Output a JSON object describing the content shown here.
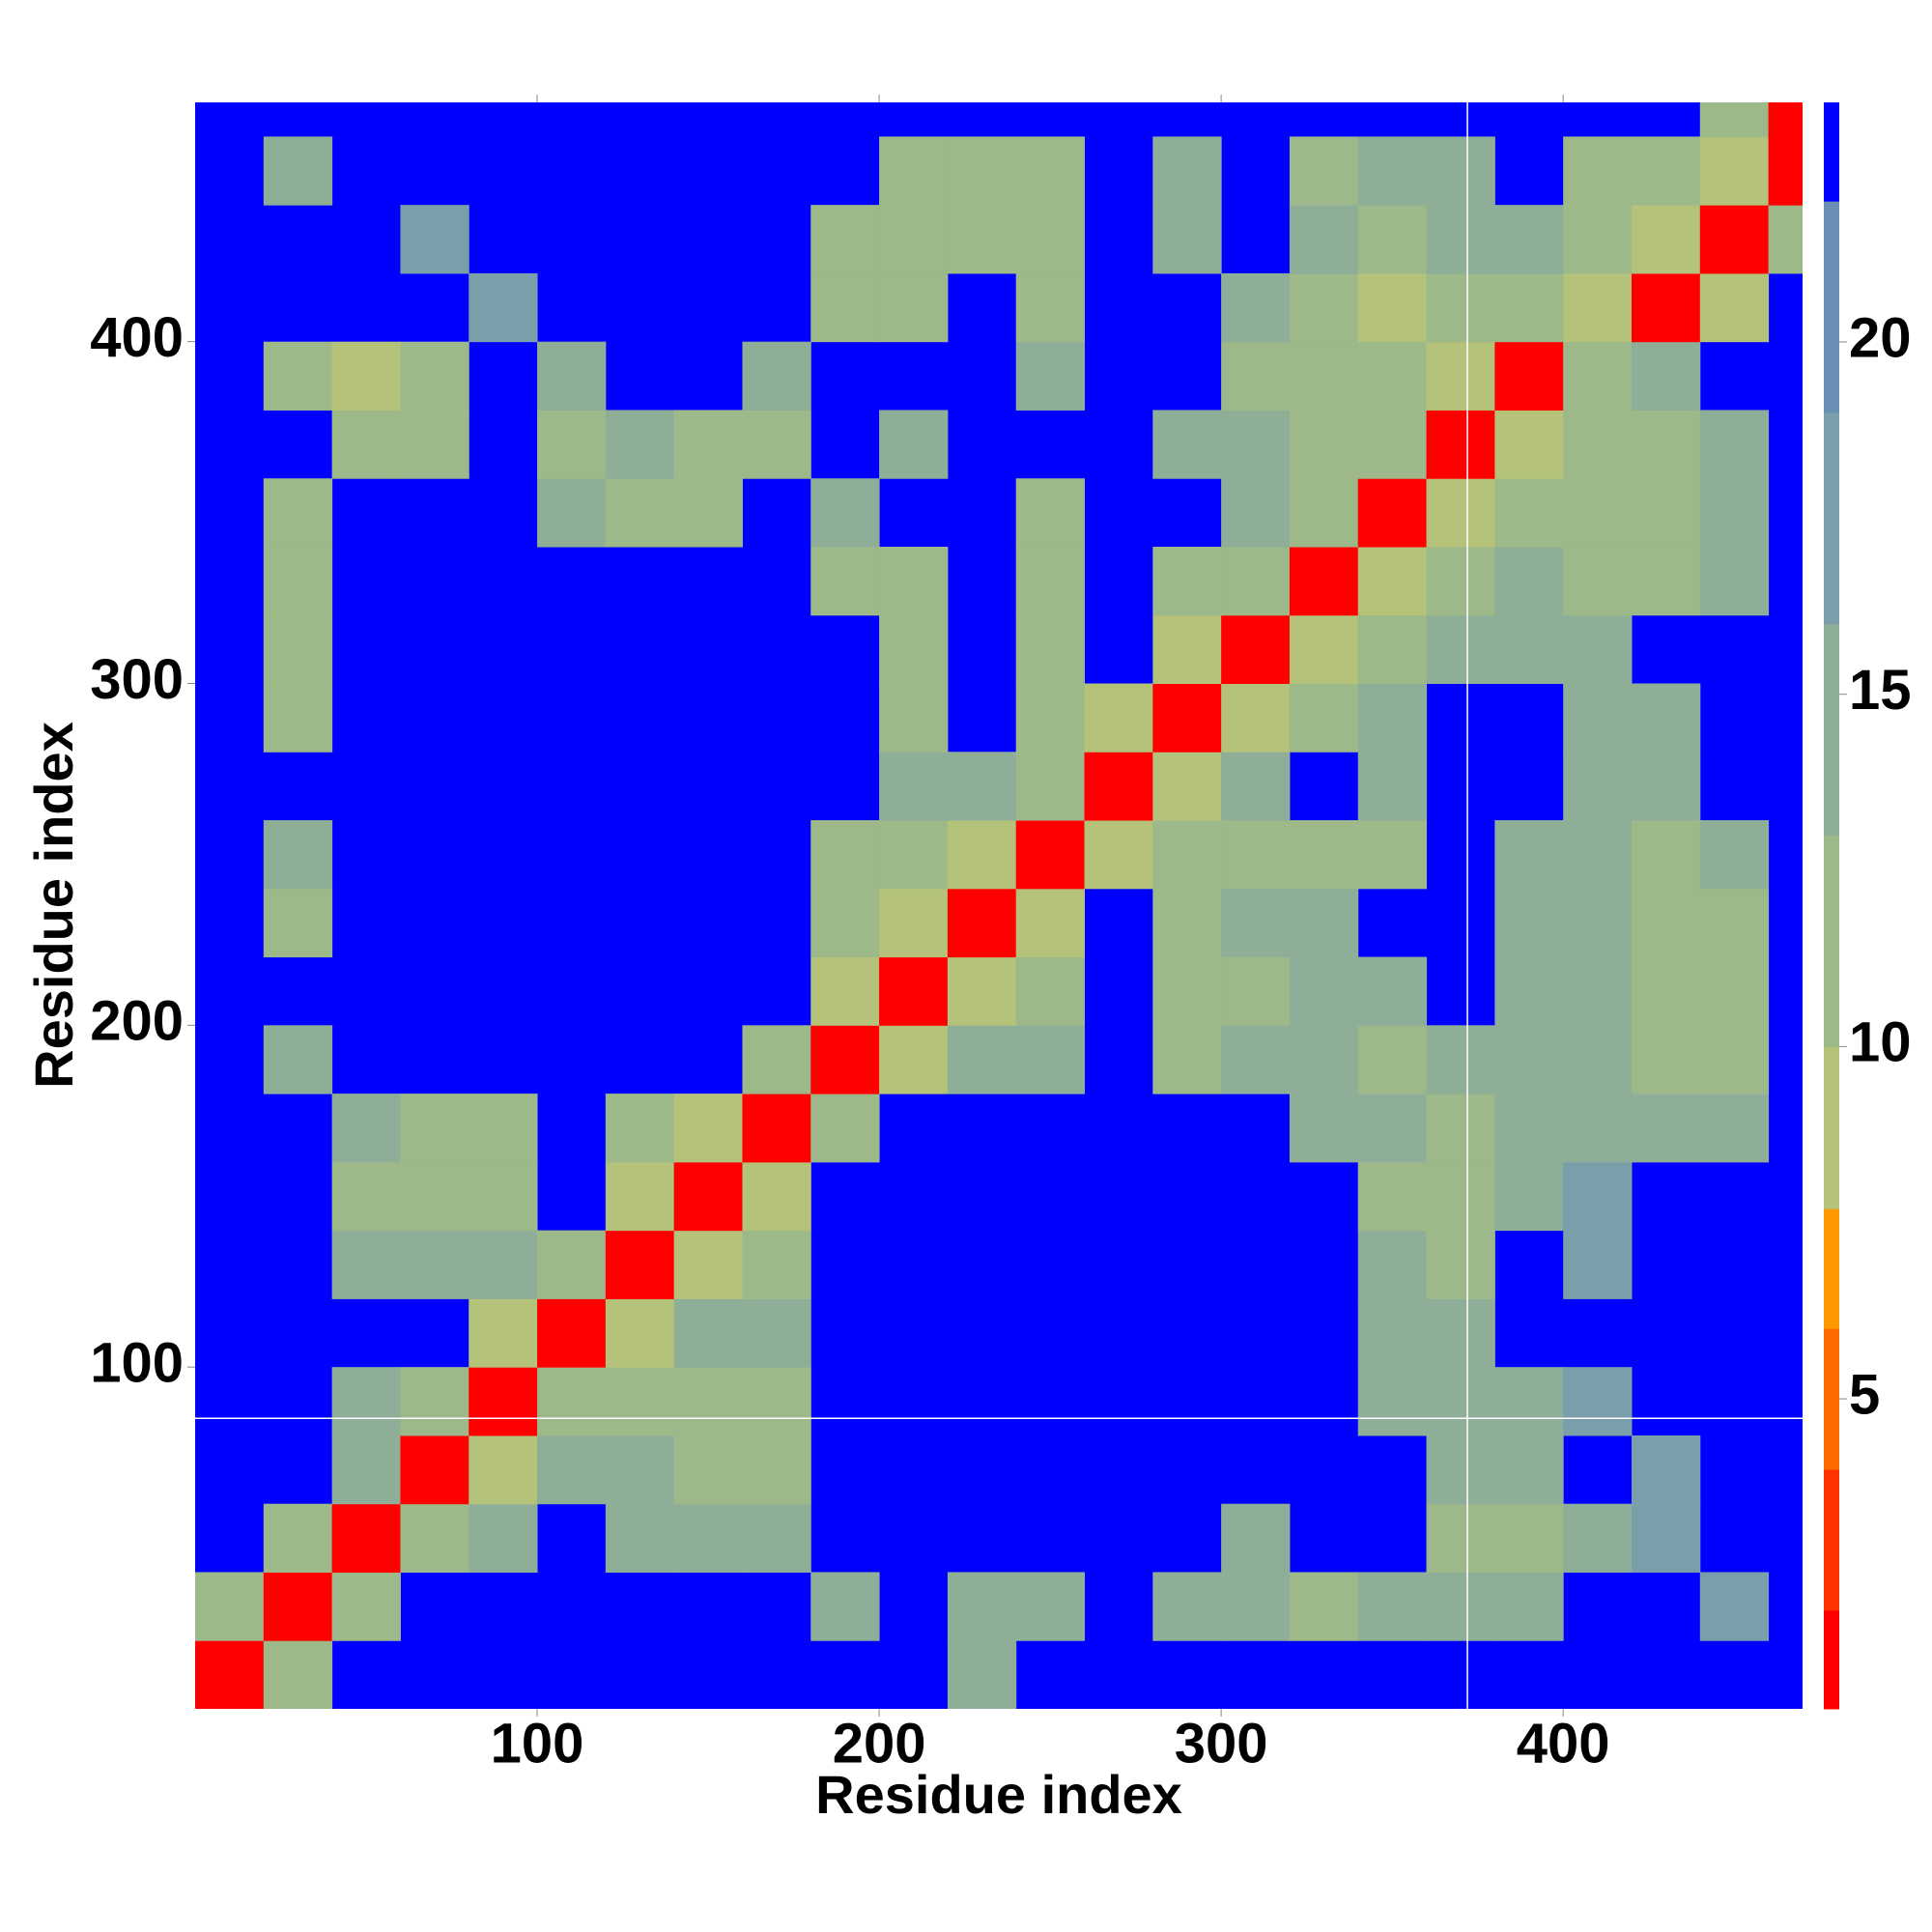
{
  "chart_data": {
    "type": "heatmap",
    "x_label": "Residue index",
    "y_label": "Residue index",
    "xlim": [
      0,
      470
    ],
    "ylim": [
      0,
      470
    ],
    "xticks": [
      100,
      200,
      300,
      400
    ],
    "yticks": [
      100,
      200,
      300,
      400
    ],
    "x_edges": [
      0,
      20,
      40,
      60,
      80,
      100,
      120,
      140,
      160,
      180,
      200,
      220,
      240,
      260,
      280,
      300,
      320,
      340,
      360,
      380,
      400,
      420,
      440,
      460,
      480
    ],
    "y_edges": [
      0,
      20,
      40,
      60,
      80,
      100,
      120,
      140,
      160,
      180,
      200,
      220,
      240,
      260,
      280,
      300,
      320,
      340,
      360,
      380,
      400,
      420,
      440,
      460,
      480
    ],
    "background_value": 23,
    "z": [
      [
        2,
        12,
        23,
        23,
        23,
        23,
        23,
        23,
        23,
        23,
        23,
        16,
        23,
        23,
        23,
        23,
        23,
        23,
        23,
        23,
        23,
        23,
        23,
        23
      ],
      [
        12,
        2,
        12,
        23,
        23,
        23,
        23,
        23,
        23,
        15,
        23,
        14,
        14,
        23,
        16,
        15,
        13,
        16,
        15,
        14,
        23,
        23,
        17,
        23
      ],
      [
        23,
        12,
        2,
        12,
        15,
        23,
        14,
        14,
        14,
        23,
        23,
        23,
        23,
        23,
        23,
        16,
        23,
        23,
        13,
        12,
        16,
        17,
        23,
        23
      ],
      [
        23,
        23,
        14,
        2,
        10,
        14,
        14,
        12,
        12,
        23,
        23,
        23,
        23,
        23,
        23,
        23,
        23,
        23,
        14,
        14,
        23,
        17,
        23,
        23
      ],
      [
        23,
        23,
        14,
        12,
        2,
        12,
        12,
        13,
        12,
        23,
        23,
        23,
        23,
        23,
        23,
        23,
        23,
        16,
        15,
        16,
        17,
        23,
        23,
        23
      ],
      [
        23,
        23,
        23,
        23,
        10,
        2,
        10,
        14,
        14,
        23,
        23,
        23,
        23,
        23,
        23,
        23,
        23,
        16,
        15,
        23,
        23,
        23,
        23,
        23
      ],
      [
        23,
        23,
        14,
        14,
        14,
        12,
        2,
        10,
        13,
        23,
        23,
        23,
        23,
        23,
        23,
        23,
        23,
        14,
        13,
        23,
        17,
        23,
        23,
        23
      ],
      [
        23,
        23,
        13,
        12,
        13,
        23,
        10,
        2,
        10,
        23,
        23,
        23,
        23,
        23,
        23,
        23,
        23,
        13,
        12,
        14,
        17,
        23,
        23,
        23
      ],
      [
        23,
        23,
        14,
        13,
        12,
        23,
        12,
        10,
        2,
        12,
        23,
        23,
        23,
        23,
        23,
        23,
        16,
        14,
        13,
        16,
        15,
        14,
        16,
        23
      ],
      [
        23,
        14,
        23,
        23,
        23,
        23,
        23,
        23,
        12,
        2,
        10,
        14,
        14,
        23,
        13,
        14,
        14,
        13,
        15,
        14,
        14,
        13,
        12,
        23
      ],
      [
        23,
        23,
        23,
        23,
        23,
        23,
        23,
        23,
        23,
        10,
        2,
        10,
        12,
        23,
        12,
        13,
        14,
        15,
        23,
        15,
        14,
        12,
        12,
        23
      ],
      [
        23,
        13,
        23,
        23,
        23,
        23,
        23,
        23,
        23,
        13,
        10,
        2,
        10,
        23,
        12,
        14,
        15,
        23,
        23,
        15,
        14,
        13,
        13,
        23
      ],
      [
        23,
        14,
        23,
        23,
        23,
        23,
        23,
        23,
        23,
        12,
        13,
        10,
        2,
        10,
        13,
        12,
        13,
        13,
        23,
        15,
        15,
        13,
        14,
        23
      ],
      [
        23,
        23,
        23,
        23,
        23,
        23,
        23,
        23,
        23,
        23,
        14,
        14,
        12,
        2,
        10,
        14,
        23,
        16,
        23,
        23,
        16,
        16,
        23,
        23
      ],
      [
        23,
        12,
        23,
        23,
        23,
        23,
        23,
        23,
        23,
        23,
        11,
        23,
        12,
        10,
        2,
        10,
        12,
        16,
        23,
        23,
        15,
        15,
        23,
        23
      ],
      [
        23,
        13,
        23,
        23,
        23,
        23,
        23,
        23,
        23,
        23,
        12,
        23,
        13,
        23,
        10,
        2,
        10,
        13,
        15,
        14,
        16,
        23,
        23,
        23
      ],
      [
        23,
        12,
        23,
        23,
        23,
        23,
        23,
        23,
        23,
        13,
        13,
        23,
        12,
        23,
        13,
        11,
        2,
        10,
        13,
        14,
        12,
        13,
        14,
        23
      ],
      [
        23,
        13,
        23,
        23,
        23,
        14,
        12,
        12,
        23,
        14,
        23,
        23,
        13,
        23,
        23,
        14,
        11,
        2,
        10,
        12,
        12,
        13,
        15,
        23
      ],
      [
        23,
        23,
        13,
        13,
        23,
        13,
        14,
        12,
        13,
        23,
        15,
        23,
        23,
        23,
        16,
        14,
        12,
        12,
        2,
        10,
        12,
        12,
        15,
        23
      ],
      [
        23,
        12,
        10,
        12,
        23,
        15,
        23,
        23,
        14,
        23,
        23,
        23,
        16,
        23,
        23,
        12,
        12,
        13,
        10,
        2,
        12,
        14,
        23,
        23
      ],
      [
        23,
        23,
        23,
        23,
        17,
        23,
        23,
        23,
        23,
        13,
        12,
        23,
        13,
        23,
        23,
        15,
        13,
        10,
        12,
        12,
        10,
        2,
        10,
        23
      ],
      [
        23,
        23,
        23,
        17,
        23,
        23,
        23,
        23,
        23,
        12,
        11,
        12,
        13,
        23,
        15,
        23,
        14,
        13,
        14,
        14,
        12,
        10,
        2,
        12
      ],
      [
        23,
        14,
        23,
        23,
        23,
        23,
        23,
        23,
        23,
        23,
        13,
        12,
        13,
        23,
        16,
        23,
        13,
        14,
        16,
        23,
        13,
        12,
        10,
        2
      ],
      [
        23,
        23,
        23,
        23,
        23,
        23,
        23,
        23,
        23,
        23,
        23,
        23,
        23,
        23,
        23,
        23,
        23,
        23,
        23,
        23,
        23,
        23,
        12,
        2
      ]
    ],
    "colorbar": {
      "levels": [
        0.6,
        2,
        4,
        6,
        7.7,
        10,
        13,
        16,
        19,
        22,
        23.4
      ],
      "colors": [
        "#ff0000",
        "#ff3300",
        "#ff6a00",
        "#ff9900",
        "#b4c27a",
        "#9db98a",
        "#8fae98",
        "#7a9eaa",
        "#6a8fb4",
        "#0000ff"
      ],
      "ticks": [
        5,
        10,
        15,
        20
      ]
    },
    "crosshair": {
      "x": 372,
      "y": 85,
      "color": "#ffffff"
    }
  }
}
